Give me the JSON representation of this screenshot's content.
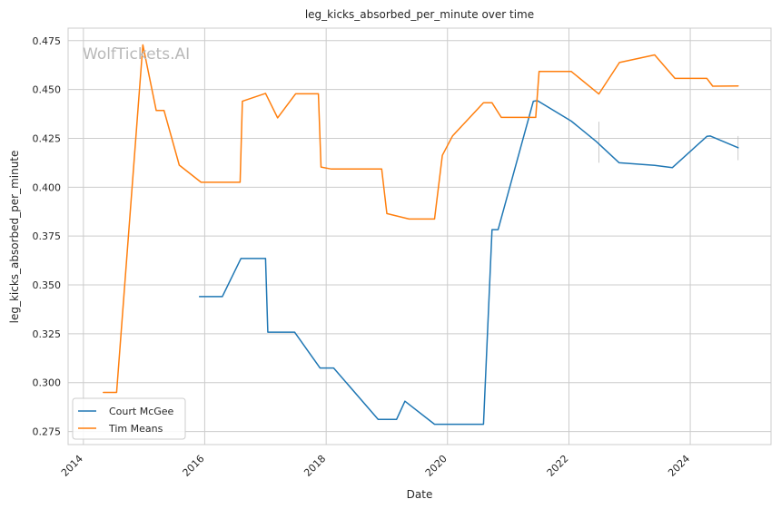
{
  "chart_data": {
    "type": "line",
    "title": "leg_kicks_absorbed_per_minute over time",
    "xlabel": "Date",
    "ylabel": "leg_kicks_absorbed_per_minute",
    "watermark": "WolfTickets.AI",
    "xlim": [
      "2013-10-01",
      "2025-05-01"
    ],
    "ylim": [
      0.2683,
      0.4814
    ],
    "x_ticks": [
      "2014",
      "2016",
      "2018",
      "2020",
      "2022",
      "2024"
    ],
    "y_ticks": [
      "0.275",
      "0.300",
      "0.325",
      "0.350",
      "0.375",
      "0.400",
      "0.425",
      "0.450",
      "0.475"
    ],
    "grid": true,
    "legend_position": "lower-left",
    "series": [
      {
        "name": "Court McGee",
        "color": "#1f77b4",
        "points": [
          [
            "2015-12-01",
            0.344
          ],
          [
            "2016-04-16",
            0.344
          ],
          [
            "2016-08-06",
            0.3635
          ],
          [
            "2017-01-01",
            0.3635
          ],
          [
            "2017-01-15",
            0.3258
          ],
          [
            "2017-06-25",
            0.3258
          ],
          [
            "2017-11-25",
            0.3075
          ],
          [
            "2018-02-15",
            0.3075
          ],
          [
            "2018-11-10",
            0.2812
          ],
          [
            "2019-03-01",
            0.2812
          ],
          [
            "2019-04-20",
            0.2905
          ],
          [
            "2019-10-15",
            0.2787
          ],
          [
            "2020-08-05",
            0.2787
          ],
          [
            "2020-09-25",
            0.3783
          ],
          [
            "2020-11-01",
            0.3783
          ],
          [
            "2021-06-01",
            0.444
          ],
          [
            "2021-06-25",
            0.4443
          ],
          [
            "2022-01-15",
            0.4338
          ],
          [
            "2022-06-15",
            0.4233
          ],
          [
            "2022-10-30",
            0.4125
          ],
          [
            "2023-06-01",
            0.4112
          ],
          [
            "2023-09-15",
            0.41
          ],
          [
            "2024-04-10",
            0.426
          ],
          [
            "2024-05-01",
            0.4262
          ],
          [
            "2024-10-15",
            0.4202
          ]
        ]
      },
      {
        "name": "Tim Means",
        "color": "#ff7f0e",
        "points": [
          [
            "2014-05-01",
            0.295
          ],
          [
            "2014-07-20",
            0.295
          ],
          [
            "2014-12-25",
            0.4728
          ],
          [
            "2015-03-15",
            0.4393
          ],
          [
            "2015-05-01",
            0.4393
          ],
          [
            "2015-08-01",
            0.4113
          ],
          [
            "2015-12-10",
            0.4025
          ],
          [
            "2016-08-01",
            0.4025
          ],
          [
            "2016-08-15",
            0.444
          ],
          [
            "2017-01-01",
            0.448
          ],
          [
            "2017-03-15",
            0.4355
          ],
          [
            "2017-07-01",
            0.4478
          ],
          [
            "2017-11-15",
            0.4478
          ],
          [
            "2017-12-01",
            0.4103
          ],
          [
            "2018-02-01",
            0.4093
          ],
          [
            "2018-12-01",
            0.4093
          ],
          [
            "2019-01-01",
            0.3865
          ],
          [
            "2019-05-15",
            0.3837
          ],
          [
            "2019-10-15",
            0.3837
          ],
          [
            "2019-12-01",
            0.4163
          ],
          [
            "2020-02-01",
            0.4263
          ],
          [
            "2020-08-05",
            0.4432
          ],
          [
            "2020-09-25",
            0.4432
          ],
          [
            "2020-11-20",
            0.4357
          ],
          [
            "2021-06-15",
            0.4357
          ],
          [
            "2021-07-05",
            0.4592
          ],
          [
            "2022-01-15",
            0.4592
          ],
          [
            "2022-06-30",
            0.4477
          ],
          [
            "2022-11-01",
            0.4638
          ],
          [
            "2023-06-01",
            0.4677
          ],
          [
            "2023-10-01",
            0.4557
          ],
          [
            "2024-04-10",
            0.4557
          ],
          [
            "2024-05-15",
            0.4517
          ],
          [
            "2024-10-15",
            0.4518
          ]
        ]
      }
    ],
    "error_bars": [
      {
        "date": "2022-06-30",
        "low": 0.4125,
        "high": 0.4335
      },
      {
        "date": "2024-10-15",
        "low": 0.4138,
        "high": 0.4262
      }
    ]
  }
}
